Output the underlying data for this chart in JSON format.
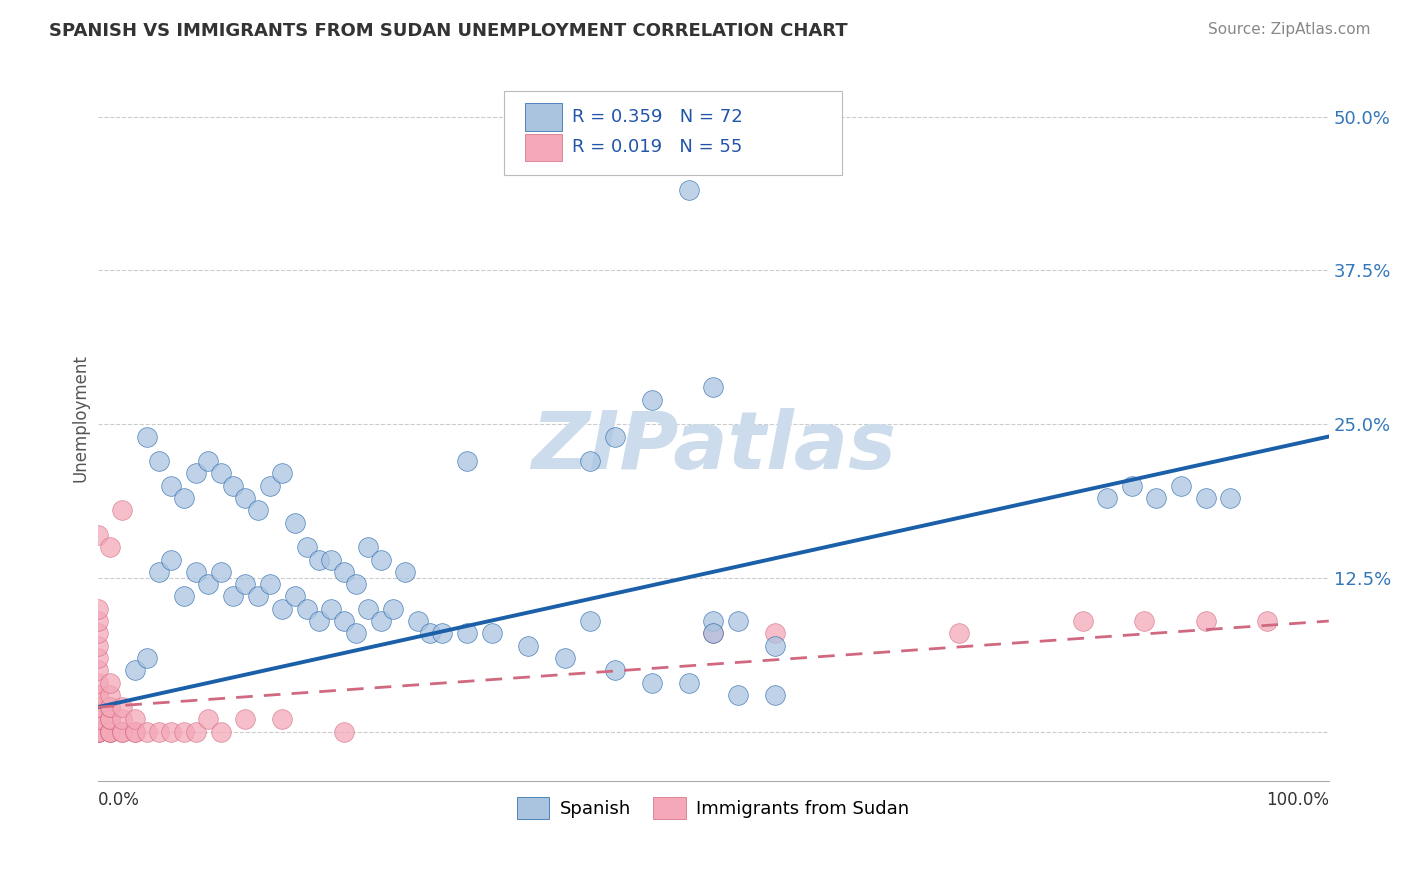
{
  "title": "SPANISH VS IMMIGRANTS FROM SUDAN UNEMPLOYMENT CORRELATION CHART",
  "source": "Source: ZipAtlas.com",
  "ylabel": "Unemployment",
  "yticks": [
    0.0,
    0.125,
    0.25,
    0.375,
    0.5
  ],
  "ytick_labels": [
    "",
    "12.5%",
    "25.0%",
    "37.5%",
    "50.0%"
  ],
  "xlim": [
    0.0,
    1.0
  ],
  "ylim": [
    -0.04,
    0.55
  ],
  "legend_r1": "R = 0.359",
  "legend_n1": "N = 72",
  "legend_r2": "R = 0.019",
  "legend_n2": "N = 55",
  "color_spanish": "#aac4e0",
  "color_sudan": "#f4a8b8",
  "color_spanish_line": "#1a5fa8",
  "color_sudan_line": "#d06880",
  "watermark": "ZIPatlas",
  "watermark_color": "#ccdcec",
  "spanish_x": [
    0.04,
    0.05,
    0.06,
    0.07,
    0.08,
    0.09,
    0.1,
    0.11,
    0.12,
    0.13,
    0.14,
    0.15,
    0.16,
    0.17,
    0.18,
    0.19,
    0.2,
    0.21,
    0.22,
    0.23,
    0.05,
    0.06,
    0.07,
    0.08,
    0.09,
    0.1,
    0.11,
    0.12,
    0.13,
    0.14,
    0.15,
    0.16,
    0.17,
    0.18,
    0.19,
    0.2,
    0.21,
    0.22,
    0.23,
    0.24,
    0.25,
    0.26,
    0.27,
    0.28,
    0.3,
    0.32,
    0.35,
    0.38,
    0.4,
    0.42,
    0.45,
    0.48,
    0.5,
    0.52,
    0.55,
    0.4,
    0.42,
    0.45,
    0.82,
    0.84,
    0.86,
    0.88,
    0.9,
    0.92,
    0.52,
    0.5,
    0.55,
    0.3,
    0.48,
    0.5,
    0.03,
    0.04
  ],
  "spanish_y": [
    0.24,
    0.22,
    0.2,
    0.19,
    0.21,
    0.22,
    0.21,
    0.2,
    0.19,
    0.18,
    0.2,
    0.21,
    0.17,
    0.15,
    0.14,
    0.14,
    0.13,
    0.12,
    0.15,
    0.14,
    0.13,
    0.14,
    0.11,
    0.13,
    0.12,
    0.13,
    0.11,
    0.12,
    0.11,
    0.12,
    0.1,
    0.11,
    0.1,
    0.09,
    0.1,
    0.09,
    0.08,
    0.1,
    0.09,
    0.1,
    0.13,
    0.09,
    0.08,
    0.08,
    0.08,
    0.08,
    0.07,
    0.06,
    0.09,
    0.05,
    0.04,
    0.04,
    0.09,
    0.03,
    0.03,
    0.22,
    0.24,
    0.27,
    0.19,
    0.2,
    0.19,
    0.2,
    0.19,
    0.19,
    0.09,
    0.08,
    0.07,
    0.22,
    0.44,
    0.28,
    0.05,
    0.06
  ],
  "sudan_x": [
    0.0,
    0.0,
    0.0,
    0.0,
    0.0,
    0.0,
    0.0,
    0.0,
    0.0,
    0.0,
    0.0,
    0.0,
    0.0,
    0.0,
    0.0,
    0.0,
    0.0,
    0.0,
    0.0,
    0.0,
    0.01,
    0.01,
    0.01,
    0.01,
    0.01,
    0.01,
    0.01,
    0.01,
    0.01,
    0.01,
    0.02,
    0.02,
    0.02,
    0.02,
    0.02,
    0.03,
    0.03,
    0.03,
    0.04,
    0.05,
    0.06,
    0.07,
    0.08,
    0.09,
    0.1,
    0.12,
    0.15,
    0.2,
    0.5,
    0.55,
    0.7,
    0.8,
    0.85,
    0.9,
    0.95
  ],
  "sudan_y": [
    0.0,
    0.0,
    0.0,
    0.0,
    0.0,
    0.0,
    0.01,
    0.01,
    0.02,
    0.02,
    0.03,
    0.03,
    0.04,
    0.05,
    0.06,
    0.07,
    0.08,
    0.09,
    0.1,
    0.16,
    0.0,
    0.0,
    0.0,
    0.01,
    0.01,
    0.02,
    0.02,
    0.03,
    0.04,
    0.15,
    0.0,
    0.0,
    0.01,
    0.02,
    0.18,
    0.0,
    0.0,
    0.01,
    0.0,
    0.0,
    0.0,
    0.0,
    0.0,
    0.01,
    0.0,
    0.01,
    0.01,
    0.0,
    0.08,
    0.08,
    0.08,
    0.09,
    0.09,
    0.09,
    0.09
  ],
  "blue_line_x": [
    0.0,
    1.0
  ],
  "blue_line_y": [
    0.02,
    0.24
  ],
  "pink_line_x": [
    0.0,
    1.0
  ],
  "pink_line_y": [
    0.02,
    0.09
  ]
}
